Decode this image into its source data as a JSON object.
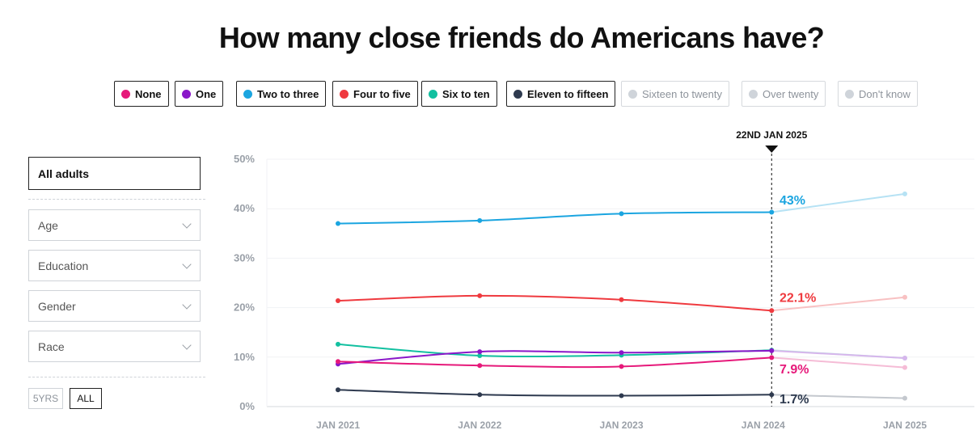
{
  "title": "How many close friends do Americans have?",
  "legend": [
    {
      "label": "None",
      "color": "#e6197a",
      "active": true
    },
    {
      "label": "One",
      "color": "#8a17c9",
      "active": true
    },
    {
      "label": "Two to three",
      "color": "#1ba5e0",
      "active": true
    },
    {
      "label": "Four to five",
      "color": "#ef3a3f",
      "active": true
    },
    {
      "label": "Six to ten",
      "color": "#12c0a0",
      "active": true
    },
    {
      "label": "Eleven to fifteen",
      "color": "#2e3a4f",
      "active": true
    },
    {
      "label": "Sixteen to twenty",
      "color": "#cfd4da",
      "active": false
    },
    {
      "label": "Over twenty",
      "color": "#cfd4da",
      "active": false
    },
    {
      "label": "Don't know",
      "color": "#cfd4da",
      "active": false
    }
  ],
  "sidebar": {
    "selected": "All adults",
    "filters": [
      "Age",
      "Education",
      "Gender",
      "Race"
    ]
  },
  "range_buttons": [
    {
      "label": "5YRS",
      "active": false
    },
    {
      "label": "ALL",
      "active": true
    }
  ],
  "chart_data": {
    "type": "line",
    "x": [
      "JAN 2021",
      "JAN 2022",
      "JAN 2023",
      "JAN 2024",
      "JAN 2025"
    ],
    "x_numeric": [
      2021,
      2022,
      2023,
      2024,
      2025
    ],
    "y_ticks": [
      "0%",
      "10%",
      "20%",
      "30%",
      "40%",
      "50%"
    ],
    "ylim": [
      0,
      50
    ],
    "marker_label": "22ND JAN 2025",
    "marker_x": 2024.06,
    "series": [
      {
        "name": "Two to three",
        "color": "#1ba5e0",
        "fade": "#b6e2f4",
        "values": [
          [
            2021,
            37.0
          ],
          [
            2022,
            37.6
          ],
          [
            2023,
            39.0
          ],
          [
            2024.06,
            39.3
          ],
          [
            2025,
            43.0
          ]
        ]
      },
      {
        "name": "Four to five",
        "color": "#ef3a3f",
        "fade": "#f8c1c2",
        "values": [
          [
            2021,
            21.4
          ],
          [
            2022,
            22.4
          ],
          [
            2023,
            21.6
          ],
          [
            2024.06,
            19.4
          ],
          [
            2025,
            22.1
          ]
        ]
      },
      {
        "name": "Six to ten",
        "color": "#12c0a0",
        "fade": "#bfe7e0",
        "values": [
          [
            2021,
            12.6
          ],
          [
            2022,
            10.3
          ],
          [
            2023,
            10.4
          ],
          [
            2024.06,
            11.4
          ],
          [
            2025,
            9.8
          ]
        ]
      },
      {
        "name": "One",
        "color": "#8a17c9",
        "fade": "#d6b6ec",
        "values": [
          [
            2021,
            8.6
          ],
          [
            2022,
            11.1
          ],
          [
            2023,
            10.9
          ],
          [
            2024.06,
            11.3
          ],
          [
            2025,
            9.8
          ]
        ]
      },
      {
        "name": "None",
        "color": "#e6197a",
        "fade": "#f5bcd6",
        "values": [
          [
            2021,
            9.1
          ],
          [
            2022,
            8.3
          ],
          [
            2023,
            8.1
          ],
          [
            2024.06,
            9.9
          ],
          [
            2025,
            7.9
          ]
        ]
      },
      {
        "name": "Eleven to fifteen",
        "color": "#2e3a4f",
        "fade": "#c4c8ce",
        "values": [
          [
            2021,
            3.4
          ],
          [
            2022,
            2.4
          ],
          [
            2023,
            2.2
          ],
          [
            2024.06,
            2.4
          ],
          [
            2025,
            1.7
          ]
        ]
      }
    ],
    "end_labels": [
      {
        "series": "Two to three",
        "text": "43%",
        "value": 43.0,
        "label_y": 41.8,
        "color": "#1ba5e0"
      },
      {
        "series": "Four to five",
        "text": "22.1%",
        "value": 22.1,
        "label_y": 22.1,
        "color": "#ef3a3f"
      },
      {
        "series": "None",
        "text": "7.9%",
        "value": 7.9,
        "label_y": 7.7,
        "color": "#e6197a"
      },
      {
        "series": "Eleven to fifteen",
        "text": "1.7%",
        "value": 1.7,
        "label_y": 1.6,
        "color": "#2e3a4f"
      }
    ]
  }
}
